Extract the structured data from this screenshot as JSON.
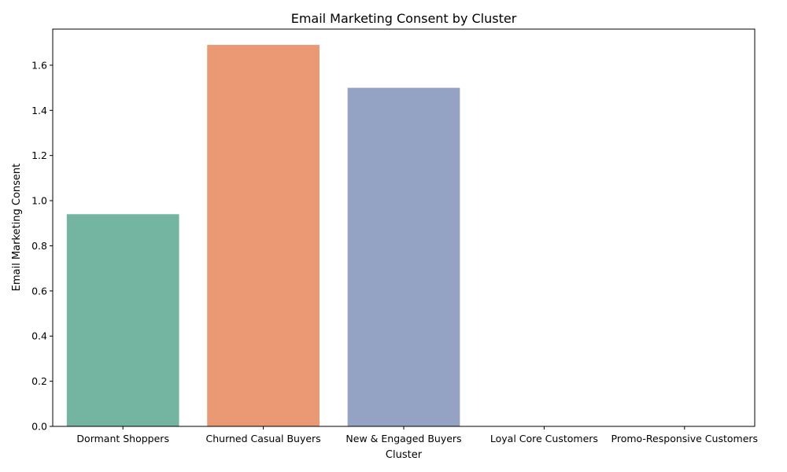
{
  "chart_data": {
    "type": "bar",
    "title": "Email Marketing Consent by Cluster",
    "xlabel": "Cluster",
    "ylabel": "Email Marketing Consent",
    "categories": [
      "Dormant Shoppers",
      "Churned Casual Buyers",
      "New & Engaged Buyers",
      "Loyal Core Customers",
      "Promo-Responsive Customers"
    ],
    "values": [
      0.94,
      1.69,
      1.5,
      0,
      0
    ],
    "colors": [
      "#73b5a0",
      "#eb9874",
      "#94a3c3",
      "#a6d854",
      "#ffd92f"
    ],
    "ylim": [
      0,
      1.76
    ],
    "yticks": [
      "0.0",
      "0.2",
      "0.4",
      "0.6",
      "0.8",
      "1.0",
      "1.2",
      "1.4",
      "1.6"
    ],
    "grid": false,
    "legend": "none"
  }
}
